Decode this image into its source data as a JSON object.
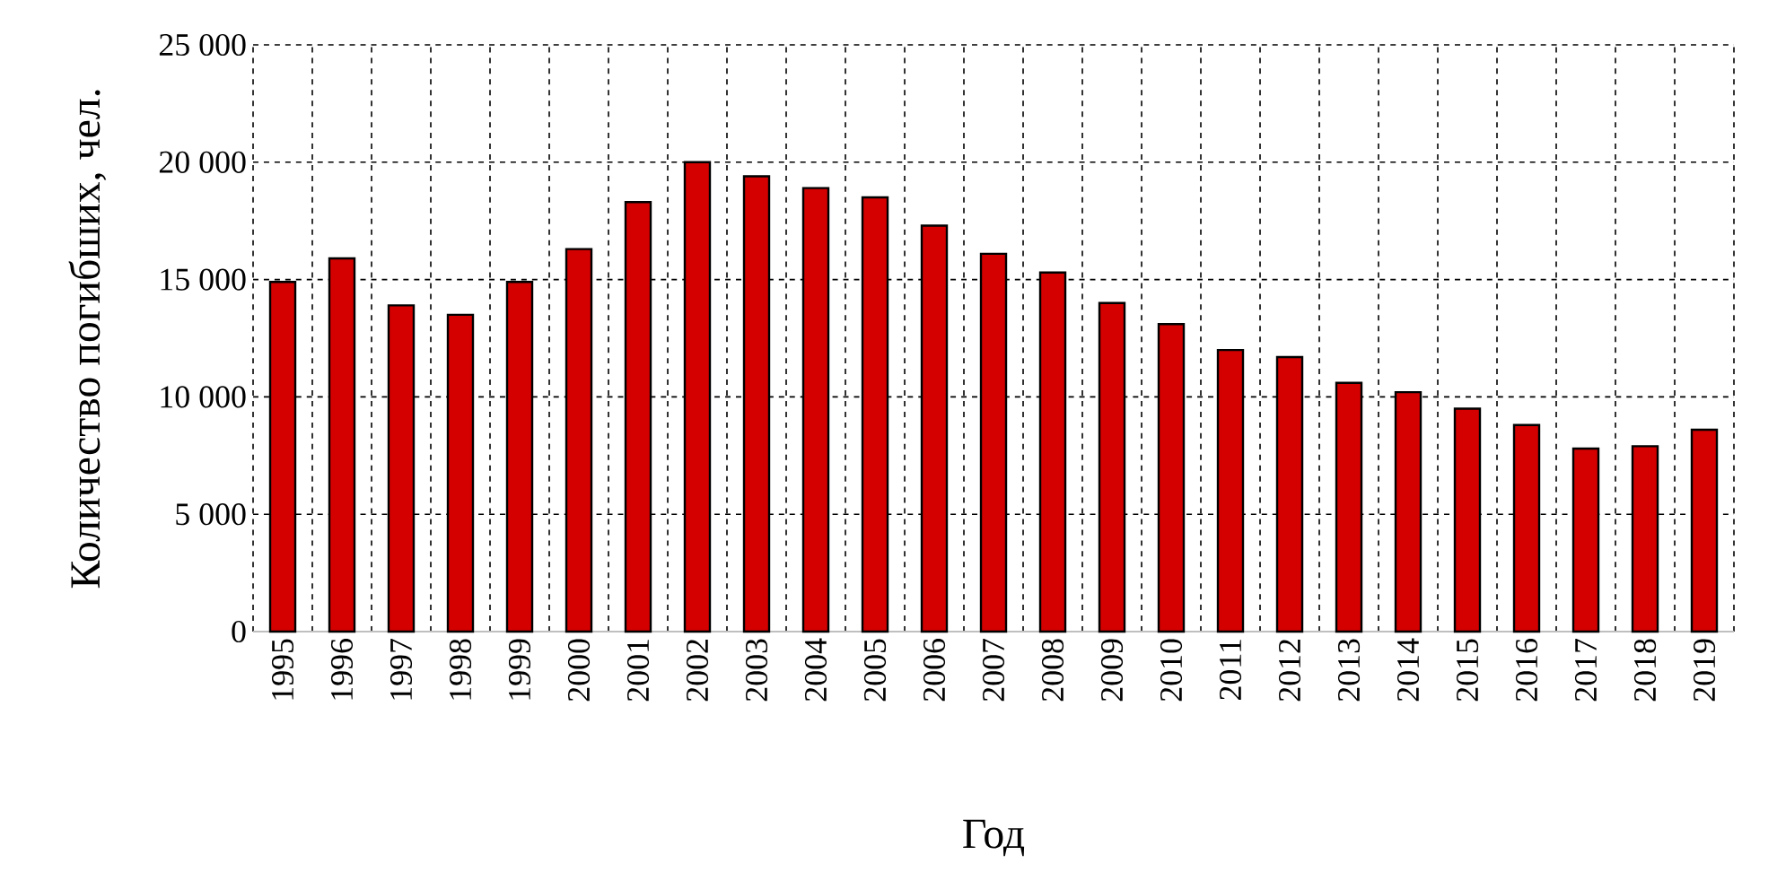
{
  "chart_data": {
    "type": "bar",
    "xlabel": "Год",
    "ylabel": "Количество погибших, чел.",
    "categories": [
      "1995",
      "1996",
      "1997",
      "1998",
      "1999",
      "2000",
      "2001",
      "2002",
      "2003",
      "2004",
      "2005",
      "2006",
      "2007",
      "2008",
      "2009",
      "2010",
      "2011",
      "2012",
      "2013",
      "2014",
      "2015",
      "2016",
      "2017",
      "2018",
      "2019"
    ],
    "values": [
      14900,
      15900,
      13900,
      13500,
      14900,
      16300,
      18300,
      20000,
      19400,
      18900,
      18500,
      17300,
      16100,
      15300,
      14000,
      13100,
      12000,
      11700,
      10600,
      10200,
      9500,
      8800,
      7800,
      7900,
      8600
    ],
    "color": "#d40000",
    "ylim": [
      0,
      25000
    ],
    "yticks": [
      0,
      {
        "value": 5000,
        "label": "5 000"
      },
      {
        "value": 10000,
        "label": "10 000"
      },
      {
        "value": 15000,
        "label": "15 000"
      },
      {
        "value": 20000,
        "label": "20 000"
      },
      {
        "value": 25000,
        "label": "25 000"
      }
    ],
    "grid": true
  }
}
